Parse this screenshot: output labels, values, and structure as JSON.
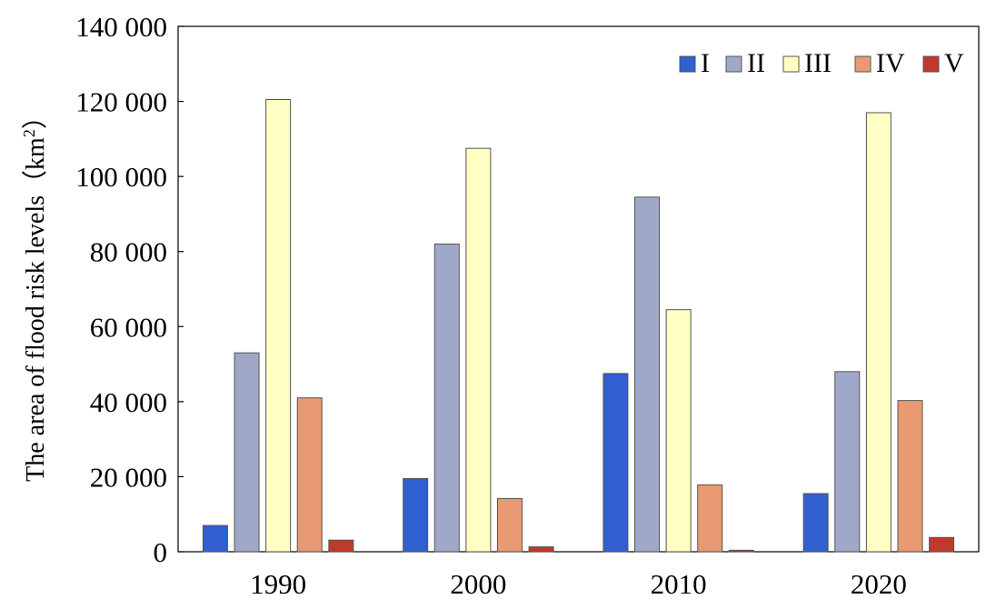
{
  "chart_data": {
    "type": "bar",
    "ylabel_main": "The area of flood risk levels（km",
    "ylabel_sup": "2",
    "ylabel_end": "）",
    "categories": [
      "1990",
      "2000",
      "2010",
      "2020"
    ],
    "ylim": [
      0,
      140000
    ],
    "yticks": [
      0,
      20000,
      40000,
      60000,
      80000,
      100000,
      120000,
      140000
    ],
    "ytick_labels": [
      "0",
      "20 000",
      "40 000",
      "60 000",
      "80 000",
      "100 000",
      "120 000",
      "140 000"
    ],
    "grid": false,
    "legend_position": "top-right",
    "series": [
      {
        "name": "I",
        "color": "#2f5fd0",
        "values": [
          7000,
          19500,
          47500,
          15500
        ]
      },
      {
        "name": "II",
        "color": "#9fa8c8",
        "values": [
          53000,
          82000,
          94500,
          48000
        ]
      },
      {
        "name": "III",
        "color": "#ffffc4",
        "values": [
          120500,
          107500,
          64500,
          117000
        ]
      },
      {
        "name": "IV",
        "color": "#e89a72",
        "values": [
          41000,
          14200,
          17800,
          40300
        ]
      },
      {
        "name": "V",
        "color": "#c0392b",
        "values": [
          3100,
          1300,
          400,
          3800
        ]
      }
    ]
  }
}
